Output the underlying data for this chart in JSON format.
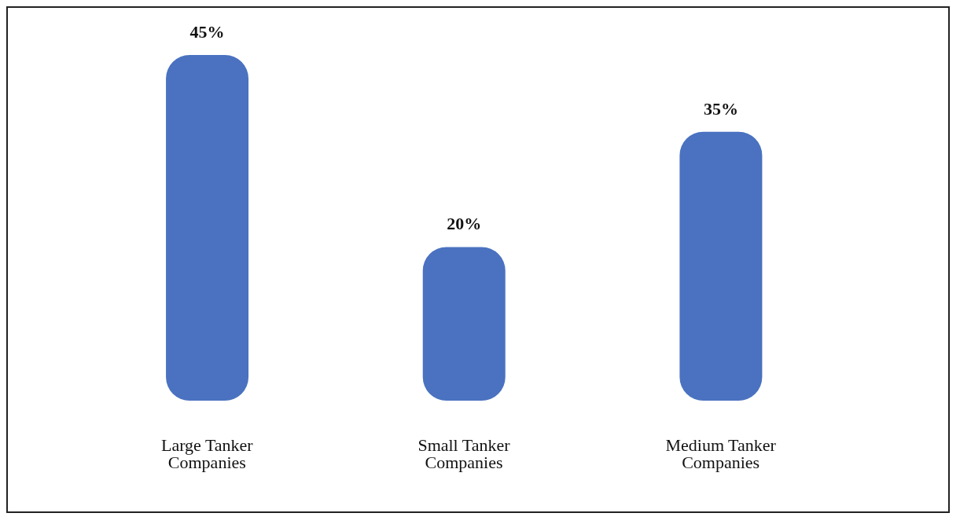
{
  "chart_data": {
    "type": "bar",
    "categories": [
      "Large Tanker Companies",
      "Small Tanker Companies",
      "Medium Tanker Companies"
    ],
    "values": [
      45,
      20,
      35
    ],
    "value_labels": [
      "45%",
      "20%",
      "35%"
    ],
    "color": "#4a72c0",
    "grid": false
  }
}
